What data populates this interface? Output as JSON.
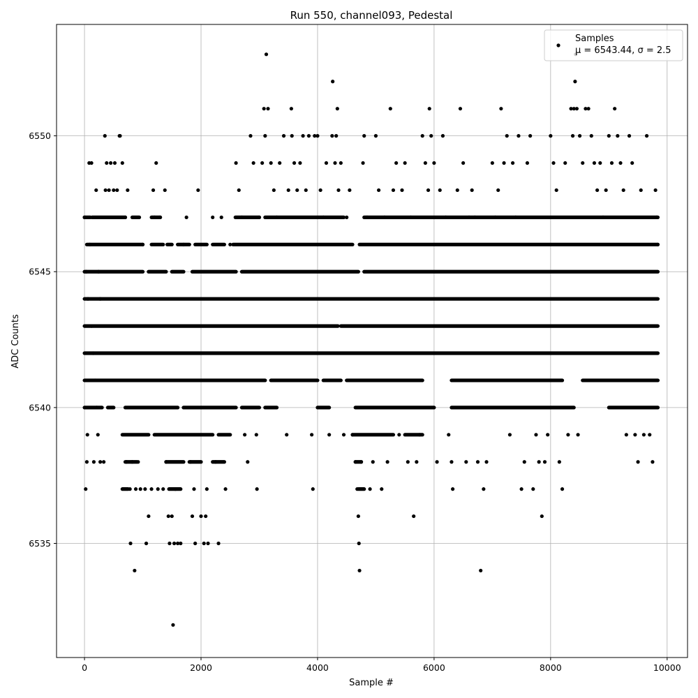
{
  "chart_data": {
    "type": "scatter",
    "title": "Run 550, channel093, Pedestal",
    "xlabel": "Sample #",
    "ylabel": "ADC Counts",
    "xlim": [
      -480,
      10350
    ],
    "ylim": [
      6530.8,
      6554.1
    ],
    "xticks": [
      0,
      2000,
      4000,
      6000,
      8000,
      10000
    ],
    "yticks": [
      6535,
      6540,
      6545,
      6550
    ],
    "grid": true,
    "legend_position": "top-right",
    "legend": {
      "label": "Samples",
      "stat": "μ = 6543.44, σ = 2.5"
    },
    "marker_color": "#000000",
    "series": [
      {
        "name": "Samples",
        "points": [
          [
            0,
            6547
          ],
          [
            30,
            6545
          ],
          [
            60,
            6544
          ],
          [
            90,
            6546
          ],
          [
            120,
            6543
          ],
          [
            150,
            6542
          ],
          [
            180,
            6541
          ],
          [
            210,
            6540
          ],
          [
            240,
            6545
          ],
          [
            270,
            6544
          ],
          [
            20,
            6537
          ],
          [
            40,
            6538
          ],
          [
            50,
            6539
          ],
          [
            80,
            6549
          ],
          [
            120,
            6549
          ],
          [
            160,
            6538
          ],
          [
            200,
            6548
          ],
          [
            230,
            6539
          ],
          [
            270,
            6538
          ],
          [
            330,
            6538
          ],
          [
            350,
            6550
          ],
          [
            360,
            6548
          ],
          [
            380,
            6549
          ],
          [
            420,
            6548
          ],
          [
            450,
            6549
          ],
          [
            500,
            6548
          ],
          [
            520,
            6549
          ],
          [
            560,
            6548
          ],
          [
            600,
            6550
          ],
          [
            610,
            6550
          ],
          [
            650,
            6549
          ],
          [
            700,
            6547
          ],
          [
            720,
            6538
          ],
          [
            740,
            6548
          ],
          [
            780,
            6537
          ],
          [
            790,
            6535
          ],
          [
            820,
            6538
          ],
          [
            860,
            6534
          ],
          [
            880,
            6537
          ],
          [
            920,
            6538
          ],
          [
            960,
            6537
          ],
          [
            1000,
            6546
          ],
          [
            1040,
            6537
          ],
          [
            1060,
            6535
          ],
          [
            1100,
            6536
          ],
          [
            1150,
            6537
          ],
          [
            1180,
            6548
          ],
          [
            1200,
            6547
          ],
          [
            1230,
            6549
          ],
          [
            1260,
            6537
          ],
          [
            1300,
            6547
          ],
          [
            1350,
            6537
          ],
          [
            1380,
            6548
          ],
          [
            1400,
            6538
          ],
          [
            1440,
            6536
          ],
          [
            1460,
            6535
          ],
          [
            1500,
            6536
          ],
          [
            1520,
            6532
          ],
          [
            1540,
            6535
          ],
          [
            1560,
            6537
          ],
          [
            1600,
            6535
          ],
          [
            1650,
            6535
          ],
          [
            1700,
            6546
          ],
          [
            1750,
            6547
          ],
          [
            1820,
            6538
          ],
          [
            1850,
            6536
          ],
          [
            1880,
            6537
          ],
          [
            1900,
            6535
          ],
          [
            1950,
            6548
          ],
          [
            2000,
            6536
          ],
          [
            2050,
            6535
          ],
          [
            2080,
            6536
          ],
          [
            2100,
            6537
          ],
          [
            2120,
            6535
          ],
          [
            2200,
            6547
          ],
          [
            2250,
            6538
          ],
          [
            2300,
            6535
          ],
          [
            2350,
            6547
          ],
          [
            2420,
            6537
          ],
          [
            2500,
            6546
          ],
          [
            2600,
            6549
          ],
          [
            2650,
            6548
          ],
          [
            2700,
            6547
          ],
          [
            2750,
            6539
          ],
          [
            2800,
            6538
          ],
          [
            2850,
            6550
          ],
          [
            2900,
            6549
          ],
          [
            2950,
            6539
          ],
          [
            2960,
            6537
          ],
          [
            3000,
            6547
          ],
          [
            3050,
            6549
          ],
          [
            3080,
            6551
          ],
          [
            3100,
            6550
          ],
          [
            3120,
            6553
          ],
          [
            3150,
            6551
          ],
          [
            3200,
            6549
          ],
          [
            3250,
            6548
          ],
          [
            3300,
            6547
          ],
          [
            3350,
            6549
          ],
          [
            3420,
            6550
          ],
          [
            3470,
            6539
          ],
          [
            3500,
            6548
          ],
          [
            3550,
            6551
          ],
          [
            3560,
            6550
          ],
          [
            3600,
            6549
          ],
          [
            3650,
            6548
          ],
          [
            3700,
            6549
          ],
          [
            3750,
            6550
          ],
          [
            3800,
            6548
          ],
          [
            3850,
            6550
          ],
          [
            3900,
            6539
          ],
          [
            3920,
            6537
          ],
          [
            3950,
            6550
          ],
          [
            4000,
            6550
          ],
          [
            4050,
            6548
          ],
          [
            4100,
            6547
          ],
          [
            4150,
            6549
          ],
          [
            4200,
            6539
          ],
          [
            4250,
            6550
          ],
          [
            4260,
            6552
          ],
          [
            4300,
            6549
          ],
          [
            4320,
            6550
          ],
          [
            4340,
            6551
          ],
          [
            4360,
            6548
          ],
          [
            4400,
            6549
          ],
          [
            4450,
            6539
          ],
          [
            4500,
            6547
          ],
          [
            4550,
            6548
          ],
          [
            4600,
            6539
          ],
          [
            4650,
            6538
          ],
          [
            4680,
            6537
          ],
          [
            4700,
            6536
          ],
          [
            4710,
            6535
          ],
          [
            4720,
            6534
          ],
          [
            4750,
            6538
          ],
          [
            4780,
            6549
          ],
          [
            4800,
            6550
          ],
          [
            4850,
            6547
          ],
          [
            4900,
            6537
          ],
          [
            4950,
            6538
          ],
          [
            5000,
            6550
          ],
          [
            5050,
            6548
          ],
          [
            5100,
            6537
          ],
          [
            5150,
            6547
          ],
          [
            5200,
            6538
          ],
          [
            5250,
            6551
          ],
          [
            5300,
            6548
          ],
          [
            5350,
            6549
          ],
          [
            5400,
            6539
          ],
          [
            5450,
            6548
          ],
          [
            5500,
            6549
          ],
          [
            5550,
            6538
          ],
          [
            5600,
            6547
          ],
          [
            5650,
            6536
          ],
          [
            5700,
            6538
          ],
          [
            5750,
            6539
          ],
          [
            5800,
            6550
          ],
          [
            5850,
            6549
          ],
          [
            5900,
            6548
          ],
          [
            5920,
            6551
          ],
          [
            5950,
            6550
          ],
          [
            6000,
            6549
          ],
          [
            6050,
            6538
          ],
          [
            6100,
            6548
          ],
          [
            6150,
            6550
          ],
          [
            6200,
            6547
          ],
          [
            6250,
            6539
          ],
          [
            6300,
            6538
          ],
          [
            6320,
            6537
          ],
          [
            6400,
            6548
          ],
          [
            6450,
            6551
          ],
          [
            6500,
            6549
          ],
          [
            6550,
            6538
          ],
          [
            6600,
            6547
          ],
          [
            6650,
            6548
          ],
          [
            6700,
            6547
          ],
          [
            6750,
            6538
          ],
          [
            6800,
            6534
          ],
          [
            6850,
            6537
          ],
          [
            6900,
            6538
          ],
          [
            7000,
            6549
          ],
          [
            7050,
            6547
          ],
          [
            7100,
            6548
          ],
          [
            7150,
            6551
          ],
          [
            7200,
            6549
          ],
          [
            7250,
            6550
          ],
          [
            7300,
            6539
          ],
          [
            7350,
            6549
          ],
          [
            7400,
            6547
          ],
          [
            7450,
            6550
          ],
          [
            7500,
            6537
          ],
          [
            7550,
            6538
          ],
          [
            7600,
            6549
          ],
          [
            7650,
            6550
          ],
          [
            7700,
            6537
          ],
          [
            7750,
            6539
          ],
          [
            7800,
            6538
          ],
          [
            7850,
            6536
          ],
          [
            7900,
            6538
          ],
          [
            7950,
            6539
          ],
          [
            8000,
            6550
          ],
          [
            8050,
            6549
          ],
          [
            8100,
            6548
          ],
          [
            8150,
            6538
          ],
          [
            8200,
            6537
          ],
          [
            8250,
            6549
          ],
          [
            8300,
            6539
          ],
          [
            8350,
            6551
          ],
          [
            8380,
            6550
          ],
          [
            8400,
            6551
          ],
          [
            8420,
            6552
          ],
          [
            8430,
            6553
          ],
          [
            8450,
            6551
          ],
          [
            8470,
            6539
          ],
          [
            8500,
            6550
          ],
          [
            8550,
            6549
          ],
          [
            8600,
            6551
          ],
          [
            8650,
            6551
          ],
          [
            8700,
            6550
          ],
          [
            8750,
            6549
          ],
          [
            8800,
            6548
          ],
          [
            8850,
            6549
          ],
          [
            8900,
            6547
          ],
          [
            8950,
            6548
          ],
          [
            9000,
            6550
          ],
          [
            9050,
            6549
          ],
          [
            9100,
            6551
          ],
          [
            9150,
            6550
          ],
          [
            9200,
            6549
          ],
          [
            9250,
            6548
          ],
          [
            9300,
            6539
          ],
          [
            9350,
            6550
          ],
          [
            9400,
            6549
          ],
          [
            9450,
            6539
          ],
          [
            9500,
            6538
          ],
          [
            9550,
            6548
          ],
          [
            9600,
            6539
          ],
          [
            9650,
            6550
          ],
          [
            9700,
            6539
          ],
          [
            9750,
            6538
          ],
          [
            9800,
            6548
          ],
          [
            9820,
            6547
          ],
          [
            9840,
            6546
          ]
        ]
      }
    ],
    "dense_bands": [
      {
        "y": 6547,
        "segments": [
          [
            0,
            100
          ],
          [
            130,
            700
          ],
          [
            820,
            940
          ],
          [
            1150,
            1300
          ],
          [
            2590,
            3000
          ],
          [
            3100,
            4450
          ],
          [
            4800,
            9840
          ]
        ]
      },
      {
        "y": 6546,
        "segments": [
          [
            40,
            1000
          ],
          [
            1150,
            1350
          ],
          [
            1420,
            1500
          ],
          [
            1600,
            1800
          ],
          [
            1900,
            2100
          ],
          [
            2200,
            2400
          ],
          [
            2550,
            4600
          ],
          [
            4720,
            9840
          ]
        ]
      },
      {
        "y": 6545,
        "segments": [
          [
            0,
            1000
          ],
          [
            1100,
            1400
          ],
          [
            1500,
            1700
          ],
          [
            1850,
            2600
          ],
          [
            2700,
            4700
          ],
          [
            4800,
            9840
          ]
        ]
      },
      {
        "y": 6544,
        "segments": [
          [
            0,
            9840
          ]
        ]
      },
      {
        "y": 6543,
        "segments": [
          [
            0,
            4350
          ],
          [
            4400,
            9840
          ]
        ]
      },
      {
        "y": 6542,
        "segments": [
          [
            0,
            9840
          ]
        ]
      },
      {
        "y": 6541,
        "segments": [
          [
            0,
            3100
          ],
          [
            3200,
            4000
          ],
          [
            4100,
            4400
          ],
          [
            4500,
            5800
          ],
          [
            6300,
            8200
          ],
          [
            8550,
            9840
          ]
        ]
      },
      {
        "y": 6540,
        "segments": [
          [
            0,
            300
          ],
          [
            400,
            500
          ],
          [
            700,
            1600
          ],
          [
            1700,
            2600
          ],
          [
            2700,
            3000
          ],
          [
            3100,
            3300
          ],
          [
            4000,
            4200
          ],
          [
            4650,
            6000
          ],
          [
            6300,
            8400
          ],
          [
            9000,
            9840
          ]
        ]
      },
      {
        "y": 6539,
        "segments": [
          [
            650,
            1100
          ],
          [
            1200,
            2200
          ],
          [
            2300,
            2500
          ],
          [
            4600,
            5300
          ],
          [
            5500,
            5800
          ]
        ]
      },
      {
        "y": 6538,
        "segments": [
          [
            700,
            900
          ],
          [
            1400,
            1700
          ],
          [
            1800,
            2000
          ],
          [
            2200,
            2400
          ],
          [
            4650,
            4750
          ]
        ]
      },
      {
        "y": 6537,
        "segments": [
          [
            650,
            750
          ],
          [
            1450,
            1650
          ],
          [
            4700,
            4800
          ]
        ]
      }
    ]
  }
}
